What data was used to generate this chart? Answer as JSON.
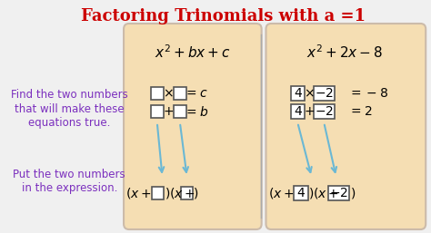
{
  "title": "Factoring Trinomials with a =1",
  "title_color": "#cc0000",
  "title_fontsize": 13,
  "bg_color": "#f0f0f0",
  "panel_color": "#f5deb3",
  "panel_edge_color": "#ccbbaa",
  "left_text_color": "#7b2fbe",
  "math_color": "#000000",
  "arrow_color": "#6bb8d4",
  "box_color": "#ffffff",
  "box_edge_color": "#555555",
  "left_label1": "Find the two numbers\nthat will make these\nequations true.",
  "left_label2": "Put the two numbers\nin the expression.",
  "general_formula": "$x^2 + bx + c$",
  "example_formula": "$x^2 + 2x - 8$",
  "general_eq1": "$\\square \\times \\square = c$",
  "general_eq2": "$\\square + \\square = b$",
  "example_eq1": "$4 \\times (-2) = -8$",
  "example_eq2": "$4 + (-2) = 2$",
  "general_factored": "$(x + \\square)(x + \\square)$",
  "example_factored": "$(x + 4)(x + (-2))$"
}
